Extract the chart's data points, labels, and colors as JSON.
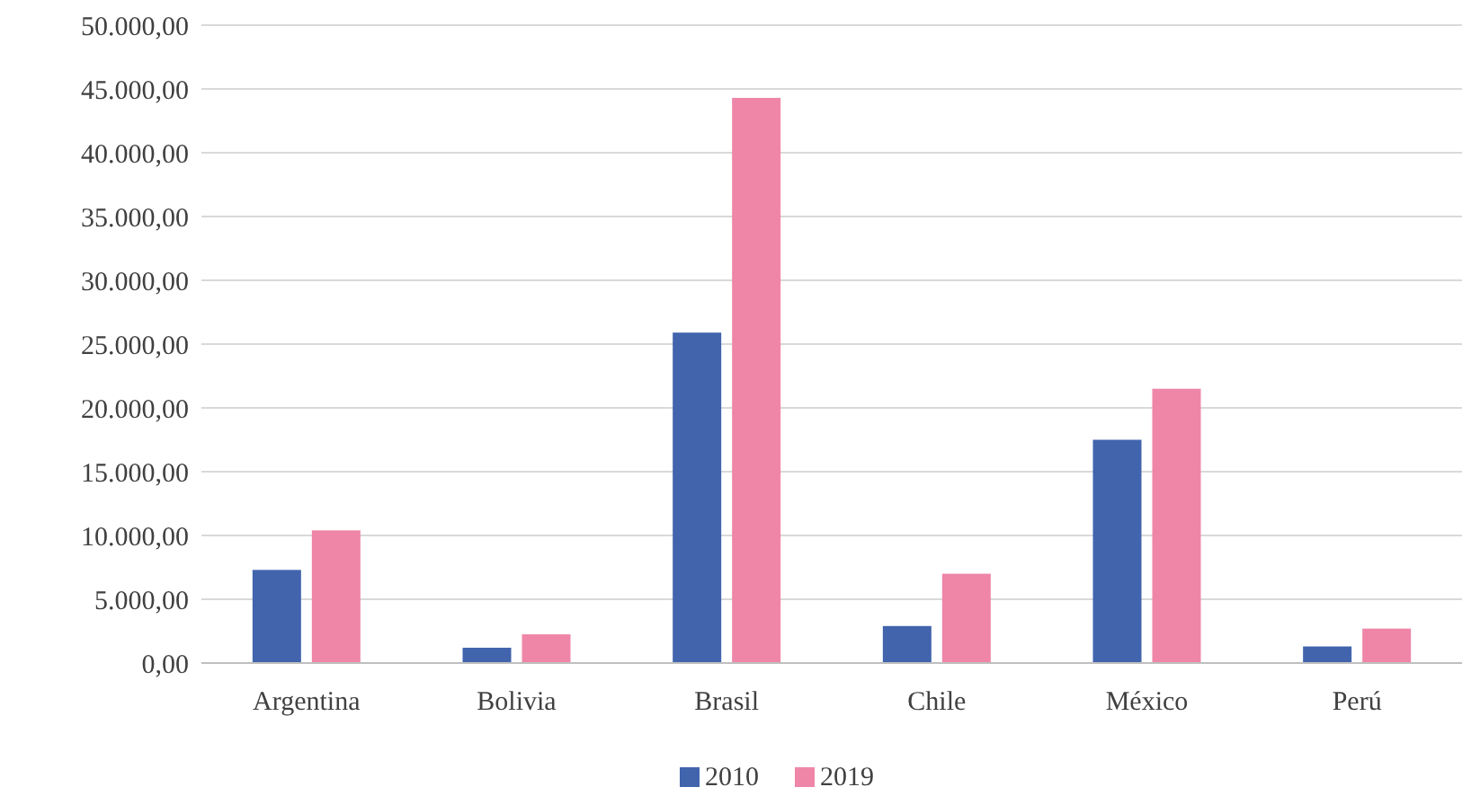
{
  "chart_data": {
    "type": "bar",
    "categories": [
      "Argentina",
      "Bolivia",
      "Brasil",
      "Chile",
      "México",
      "Perú"
    ],
    "series": [
      {
        "name": "2010",
        "color": "#4164ad",
        "values": [
          7300,
          1200,
          25900,
          2900,
          17500,
          1300
        ]
      },
      {
        "name": "2019",
        "color": "#ef86a7",
        "values": [
          10400,
          2250,
          44300,
          7000,
          21500,
          2700
        ]
      }
    ],
    "ylim": [
      0,
      50000
    ],
    "yticks": [
      {
        "value": 0,
        "label": "0,00"
      },
      {
        "value": 5000,
        "label": "5.000,00"
      },
      {
        "value": 10000,
        "label": "10.000,00"
      },
      {
        "value": 15000,
        "label": "15.000,00"
      },
      {
        "value": 20000,
        "label": "20.000,00"
      },
      {
        "value": 25000,
        "label": "25.000,00"
      },
      {
        "value": 30000,
        "label": "30.000,00"
      },
      {
        "value": 35000,
        "label": "35.000,00"
      },
      {
        "value": 40000,
        "label": "40.000,00"
      },
      {
        "value": 45000,
        "label": "45.000,00"
      },
      {
        "value": 50000,
        "label": "50.000,00"
      }
    ],
    "grid": "y",
    "legend": "bottom"
  }
}
